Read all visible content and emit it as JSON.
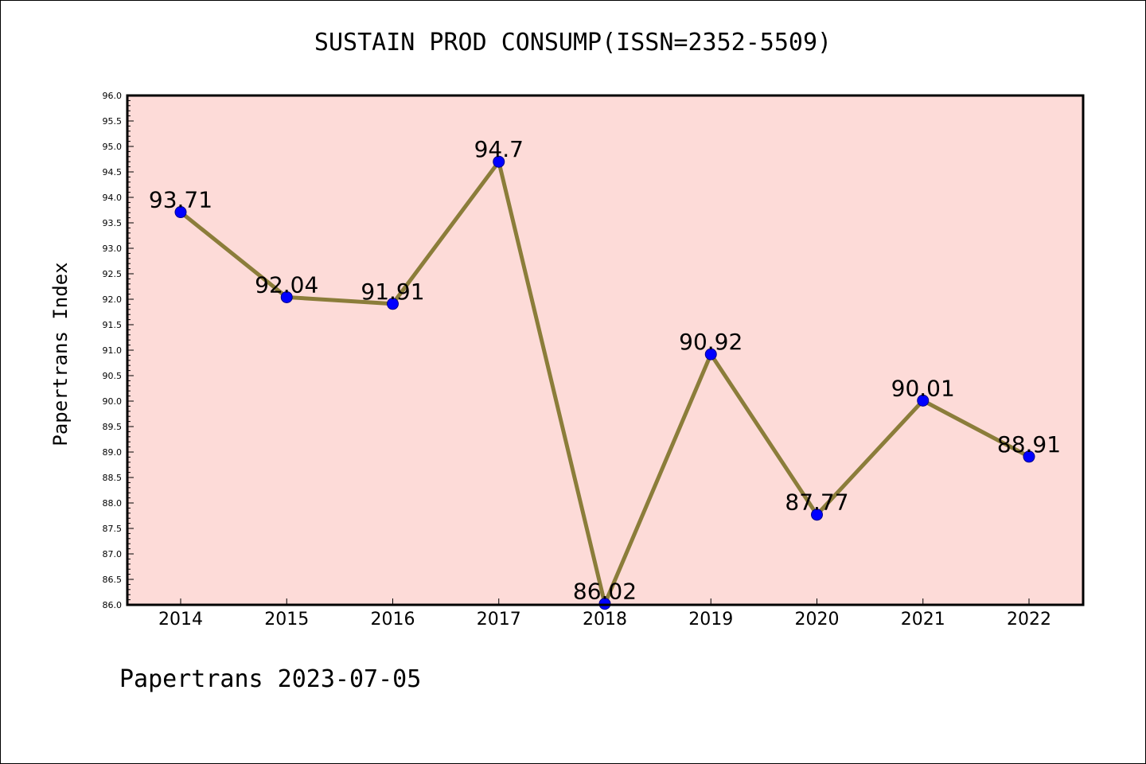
{
  "footer_text": "Papertrans 2023-07-05",
  "colors": {
    "plot_background": "#fddbd8",
    "line": "#8b7d3a",
    "marker": "#0000ff",
    "axis": "#000000"
  },
  "chart_data": {
    "type": "line",
    "title": "SUSTAIN PROD CONSUMP(ISSN=2352-5509)",
    "xlabel": "",
    "ylabel": "Papertrans Index",
    "categories": [
      "2014",
      "2015",
      "2016",
      "2017",
      "2018",
      "2019",
      "2020",
      "2021",
      "2022"
    ],
    "series": [
      {
        "values": [
          93.71,
          92.04,
          91.91,
          94.7,
          86.02,
          90.92,
          87.77,
          90.01,
          88.91
        ],
        "data_labels": [
          "93.71",
          "92.04",
          "91.91",
          "94.7",
          "86.02",
          "90.92",
          "87.77",
          "90.01",
          "88.91"
        ]
      }
    ],
    "ylim": [
      86.0,
      96.0
    ],
    "y_major_step": 0.5,
    "y_minor_step": 0.1,
    "y_tick_labels": [
      "86.0",
      "86.5",
      "87.0",
      "87.5",
      "88.0",
      "88.5",
      "89.0",
      "89.5",
      "90.0",
      "90.5",
      "91.0",
      "91.5",
      "92.0",
      "92.5",
      "93.0",
      "93.5",
      "94.0",
      "94.5",
      "95.0",
      "95.5",
      "96.0"
    ],
    "grid": false,
    "markers": true
  }
}
